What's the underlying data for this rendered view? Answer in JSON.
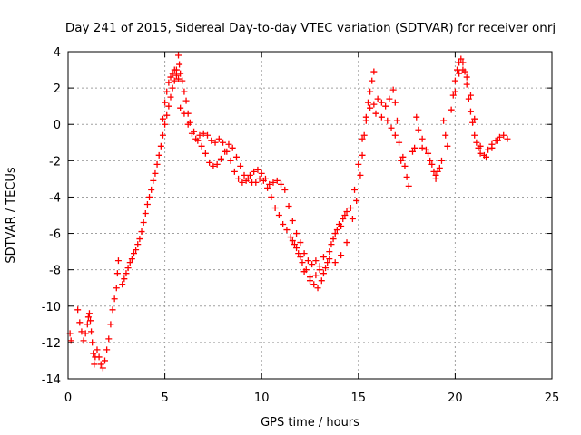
{
  "chart_data": {
    "type": "scatter",
    "title": "Day 241 of 2015, Sidereal Day-to-day VTEC variation (SDTVAR) for receiver onrj",
    "xlabel": "GPS time / hours",
    "ylabel": "SDTVAR / TECUs",
    "xlim": [
      0,
      25
    ],
    "ylim": [
      -14,
      4
    ],
    "xticks": [
      0,
      5,
      10,
      15,
      20,
      25
    ],
    "yticks": [
      -14,
      -12,
      -10,
      -8,
      -6,
      -4,
      -2,
      0,
      2,
      4
    ],
    "xtick_labels": [
      "0",
      "5",
      "10",
      "15",
      "20",
      "25"
    ],
    "ytick_labels": [
      "-14",
      "-12",
      "-10",
      "-8",
      "-6",
      "-4",
      "-2",
      "0",
      "2",
      "4"
    ],
    "grid": true,
    "marker": "+",
    "color": "#ff0000",
    "series": [
      {
        "name": "SDTVAR",
        "points": [
          [
            0.1,
            -11.5
          ],
          [
            0.15,
            -11.9
          ],
          [
            0.5,
            -10.2
          ],
          [
            0.6,
            -10.9
          ],
          [
            0.7,
            -11.4
          ],
          [
            0.8,
            -11.9
          ],
          [
            0.9,
            -11.5
          ],
          [
            1.0,
            -11.0
          ],
          [
            1.05,
            -10.6
          ],
          [
            1.1,
            -10.4
          ],
          [
            1.15,
            -10.8
          ],
          [
            1.2,
            -11.4
          ],
          [
            1.25,
            -12.0
          ],
          [
            1.3,
            -12.6
          ],
          [
            1.35,
            -13.2
          ],
          [
            1.4,
            -12.8
          ],
          [
            1.5,
            -12.4
          ],
          [
            1.6,
            -12.8
          ],
          [
            1.7,
            -13.2
          ],
          [
            1.8,
            -13.4
          ],
          [
            1.9,
            -13.0
          ],
          [
            2.0,
            -12.4
          ],
          [
            2.1,
            -11.8
          ],
          [
            2.2,
            -11.0
          ],
          [
            2.3,
            -10.2
          ],
          [
            2.4,
            -9.6
          ],
          [
            2.5,
            -9.0
          ],
          [
            2.55,
            -8.2
          ],
          [
            2.6,
            -7.5
          ],
          [
            2.8,
            -8.8
          ],
          [
            2.9,
            -8.5
          ],
          [
            3.0,
            -8.2
          ],
          [
            3.1,
            -7.9
          ],
          [
            3.2,
            -7.6
          ],
          [
            3.3,
            -7.4
          ],
          [
            3.4,
            -7.1
          ],
          [
            3.5,
            -6.9
          ],
          [
            3.6,
            -6.6
          ],
          [
            3.7,
            -6.3
          ],
          [
            3.8,
            -5.9
          ],
          [
            3.9,
            -5.4
          ],
          [
            4.0,
            -4.9
          ],
          [
            4.1,
            -4.4
          ],
          [
            4.2,
            -4.0
          ],
          [
            4.3,
            -3.6
          ],
          [
            4.4,
            -3.1
          ],
          [
            4.5,
            -2.7
          ],
          [
            4.6,
            -2.2
          ],
          [
            4.7,
            -1.7
          ],
          [
            4.8,
            -1.2
          ],
          [
            4.9,
            -0.6
          ],
          [
            5.0,
            0.0
          ],
          [
            5.1,
            0.5
          ],
          [
            5.2,
            1.0
          ],
          [
            5.3,
            1.5
          ],
          [
            5.4,
            2.0
          ],
          [
            5.5,
            2.4
          ],
          [
            5.6,
            2.7
          ],
          [
            5.7,
            2.5
          ],
          [
            4.9,
            0.3
          ],
          [
            5.0,
            1.2
          ],
          [
            5.1,
            1.8
          ],
          [
            5.2,
            2.3
          ],
          [
            5.3,
            2.6
          ],
          [
            5.4,
            2.8
          ],
          [
            5.5,
            3.0
          ],
          [
            5.6,
            3.0
          ],
          [
            5.7,
            3.8
          ],
          [
            5.75,
            3.3
          ],
          [
            5.8,
            2.8
          ],
          [
            5.9,
            2.4
          ],
          [
            6.0,
            1.8
          ],
          [
            6.1,
            1.3
          ],
          [
            6.2,
            0.6
          ],
          [
            6.3,
            0.1
          ],
          [
            6.5,
            -0.4
          ],
          [
            6.7,
            -0.9
          ],
          [
            6.9,
            -1.2
          ],
          [
            7.1,
            -1.6
          ],
          [
            7.3,
            -2.1
          ],
          [
            7.5,
            -2.3
          ],
          [
            7.7,
            -2.2
          ],
          [
            7.9,
            -1.9
          ],
          [
            8.1,
            -1.5
          ],
          [
            8.3,
            -1.1
          ],
          [
            8.5,
            -1.3
          ],
          [
            8.7,
            -1.8
          ],
          [
            8.9,
            -2.3
          ],
          [
            9.1,
            -2.8
          ],
          [
            9.3,
            -3.0
          ],
          [
            9.5,
            -3.2
          ],
          [
            9.7,
            -3.2
          ],
          [
            9.9,
            -3.0
          ],
          [
            10.1,
            -3.1
          ],
          [
            10.3,
            -3.5
          ],
          [
            10.5,
            -4.0
          ],
          [
            10.7,
            -4.6
          ],
          [
            10.9,
            -5.0
          ],
          [
            11.1,
            -5.5
          ],
          [
            11.3,
            -5.8
          ],
          [
            11.5,
            -6.2
          ],
          [
            11.7,
            -6.6
          ],
          [
            11.9,
            -7.1
          ],
          [
            12.1,
            -7.6
          ],
          [
            12.3,
            -8.0
          ],
          [
            12.5,
            -8.4
          ],
          [
            12.7,
            -8.8
          ],
          [
            12.9,
            -9.0
          ],
          [
            13.1,
            -8.6
          ],
          [
            13.3,
            -7.9
          ],
          [
            13.5,
            -7.0
          ],
          [
            13.7,
            -6.3
          ],
          [
            13.9,
            -5.8
          ],
          [
            14.1,
            -5.6
          ],
          [
            14.3,
            -5.0
          ],
          [
            5.8,
            0.9
          ],
          [
            6.0,
            0.6
          ],
          [
            6.2,
            0.0
          ],
          [
            6.4,
            -0.5
          ],
          [
            6.6,
            -0.8
          ],
          [
            6.8,
            -0.6
          ],
          [
            7.0,
            -0.5
          ],
          [
            7.2,
            -0.6
          ],
          [
            7.4,
            -0.9
          ],
          [
            7.6,
            -1.0
          ],
          [
            7.8,
            -0.8
          ],
          [
            8.0,
            -1.0
          ],
          [
            8.2,
            -1.5
          ],
          [
            8.4,
            -2.0
          ],
          [
            8.6,
            -2.6
          ],
          [
            8.8,
            -3.0
          ],
          [
            9.0,
            -3.2
          ],
          [
            9.2,
            -3.1
          ],
          [
            9.4,
            -2.8
          ],
          [
            9.6,
            -2.6
          ],
          [
            9.8,
            -2.5
          ],
          [
            10.0,
            -2.7
          ],
          [
            10.2,
            -3.0
          ],
          [
            10.4,
            -3.3
          ],
          [
            10.6,
            -3.2
          ],
          [
            10.8,
            -3.1
          ],
          [
            11.0,
            -3.3
          ],
          [
            11.2,
            -3.6
          ],
          [
            11.4,
            -4.5
          ],
          [
            11.6,
            -5.3
          ],
          [
            11.8,
            -6.0
          ],
          [
            12.0,
            -6.5
          ],
          [
            12.2,
            -7.1
          ],
          [
            12.4,
            -7.5
          ],
          [
            12.6,
            -7.7
          ],
          [
            12.8,
            -7.5
          ],
          [
            13.0,
            -7.8
          ],
          [
            13.2,
            -8.2
          ],
          [
            13.4,
            -7.6
          ],
          [
            13.6,
            -6.6
          ],
          [
            13.8,
            -6.0
          ],
          [
            14.0,
            -5.5
          ],
          [
            14.2,
            -5.2
          ],
          [
            14.4,
            -4.8
          ],
          [
            11.6,
            -6.4
          ],
          [
            11.8,
            -6.8
          ],
          [
            12.0,
            -7.3
          ],
          [
            12.2,
            -8.1
          ],
          [
            12.5,
            -8.6
          ],
          [
            12.8,
            -8.3
          ],
          [
            13.0,
            -8.0
          ],
          [
            13.2,
            -7.3
          ],
          [
            13.5,
            -7.4
          ],
          [
            13.8,
            -7.6
          ],
          [
            14.1,
            -7.2
          ],
          [
            14.4,
            -6.5
          ],
          [
            14.7,
            -5.2
          ],
          [
            14.9,
            -4.2
          ],
          [
            15.1,
            -2.8
          ],
          [
            15.2,
            -1.7
          ],
          [
            15.3,
            -0.6
          ],
          [
            15.4,
            0.4
          ],
          [
            15.5,
            1.2
          ],
          [
            15.6,
            1.8
          ],
          [
            15.7,
            2.4
          ],
          [
            15.8,
            2.9
          ],
          [
            14.6,
            -4.6
          ],
          [
            14.8,
            -3.6
          ],
          [
            15.0,
            -2.2
          ],
          [
            15.2,
            -0.8
          ],
          [
            15.4,
            0.2
          ],
          [
            15.6,
            0.9
          ],
          [
            15.8,
            1.1
          ],
          [
            16.0,
            1.4
          ],
          [
            16.2,
            1.2
          ],
          [
            16.4,
            1.0
          ],
          [
            16.6,
            1.4
          ],
          [
            16.8,
            1.9
          ],
          [
            16.9,
            1.2
          ],
          [
            17.0,
            0.2
          ],
          [
            17.1,
            -1.0
          ],
          [
            17.2,
            -2.0
          ],
          [
            15.9,
            0.6
          ],
          [
            16.2,
            0.4
          ],
          [
            16.5,
            0.2
          ],
          [
            16.7,
            -0.2
          ],
          [
            16.9,
            -0.6
          ],
          [
            17.3,
            -1.8
          ],
          [
            17.4,
            -2.3
          ],
          [
            17.5,
            -2.9
          ],
          [
            17.6,
            -3.4
          ],
          [
            17.8,
            -1.5
          ],
          [
            17.9,
            -1.3
          ],
          [
            18.0,
            0.4
          ],
          [
            18.1,
            -0.3
          ],
          [
            18.3,
            -0.8
          ],
          [
            18.5,
            -1.4
          ],
          [
            18.7,
            -2.0
          ],
          [
            18.9,
            -2.6
          ],
          [
            19.0,
            -3.0
          ],
          [
            19.1,
            -2.6
          ],
          [
            18.3,
            -1.3
          ],
          [
            18.6,
            -1.6
          ],
          [
            18.8,
            -2.2
          ],
          [
            19.0,
            -2.8
          ],
          [
            19.2,
            -2.4
          ],
          [
            19.3,
            -2.0
          ],
          [
            19.4,
            0.2
          ],
          [
            19.5,
            -0.6
          ],
          [
            19.6,
            -1.2
          ],
          [
            19.8,
            0.8
          ],
          [
            19.9,
            1.6
          ],
          [
            20.0,
            2.4
          ],
          [
            20.1,
            3.0
          ],
          [
            20.2,
            3.4
          ],
          [
            20.3,
            3.6
          ],
          [
            20.4,
            3.4
          ],
          [
            20.5,
            2.9
          ],
          [
            20.6,
            2.2
          ],
          [
            20.7,
            1.4
          ],
          [
            20.8,
            0.7
          ],
          [
            20.9,
            0.1
          ],
          [
            21.0,
            -0.6
          ],
          [
            21.1,
            -1.0
          ],
          [
            21.2,
            -1.3
          ],
          [
            21.3,
            -1.6
          ],
          [
            21.5,
            -1.7
          ],
          [
            21.7,
            -1.4
          ],
          [
            21.9,
            -1.1
          ],
          [
            22.1,
            -0.9
          ],
          [
            22.3,
            -0.7
          ],
          [
            22.5,
            -0.6
          ],
          [
            22.7,
            -0.8
          ],
          [
            20.0,
            1.8
          ],
          [
            20.2,
            2.8
          ],
          [
            20.4,
            3.0
          ],
          [
            20.6,
            2.6
          ],
          [
            20.8,
            1.6
          ],
          [
            21.0,
            0.3
          ],
          [
            21.3,
            -1.2
          ],
          [
            21.6,
            -1.8
          ],
          [
            21.9,
            -1.3
          ],
          [
            22.2,
            -0.9
          ]
        ]
      }
    ]
  }
}
